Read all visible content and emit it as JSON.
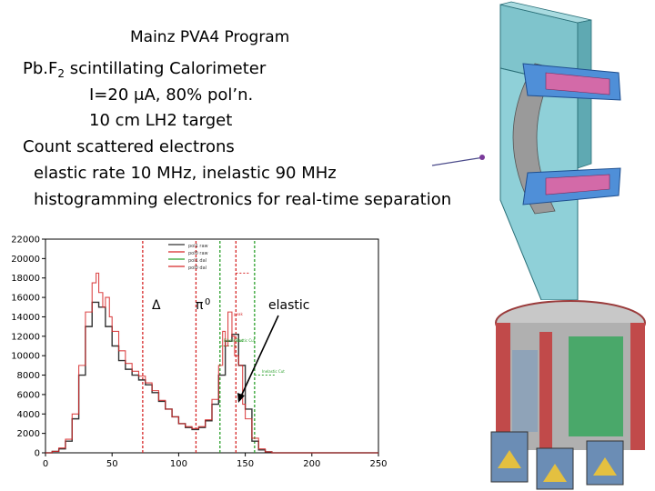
{
  "slide": {
    "title": "Mainz PVA4 Program",
    "line1_main": "Pb.F",
    "line1_sub": "2",
    "line1_rest": " scintillating Calorimeter",
    "line2": "I=20 μA, 80% pol’n.",
    "line3": "10 cm LH2 target",
    "line4": "Count scattered electrons",
    "line5": "elastic rate 10 MHz, inelastic 90 MHz",
    "line6": "histogramming electronics for real-time separation"
  },
  "chart_data": {
    "type": "line",
    "xlim": [
      0,
      250
    ],
    "ylim": [
      0,
      22000
    ],
    "x_ticks": [
      "0",
      "50",
      "100",
      "150",
      "200",
      "250"
    ],
    "y_ticks": [
      "0",
      "2000",
      "4000",
      "6000",
      "8000",
      "10000",
      "12000",
      "14000",
      "16000",
      "18000",
      "20000",
      "22000"
    ],
    "legend": [
      "pol1 raw",
      "pol0 raw",
      "pol1 dal",
      "pol0 dal"
    ],
    "legend_colors": [
      "#333333",
      "#d62728",
      "#2ca02c",
      "#d62728"
    ],
    "annotations": {
      "delta": "Δ",
      "pi0": "π",
      "pi0_sup": "0",
      "elastic": "elastic",
      "cut1": "Elastic Cut",
      "cut2": "Elastic Cut",
      "cut3": "Inelastic Cut",
      "peak": "peak"
    },
    "series": [
      {
        "color": "#333333",
        "x": [
          0,
          5,
          10,
          15,
          20,
          25,
          30,
          35,
          40,
          45,
          50,
          55,
          60,
          65,
          70,
          75,
          80,
          85,
          90,
          95,
          100,
          105,
          110,
          115,
          120,
          125,
          130,
          135,
          140,
          145,
          150,
          155,
          160,
          165,
          170,
          180,
          200,
          250
        ],
        "y": [
          0,
          150,
          400,
          1200,
          3500,
          8000,
          13000,
          15500,
          15000,
          13000,
          11000,
          9500,
          8600,
          8000,
          7500,
          7000,
          6200,
          5300,
          4500,
          3700,
          3000,
          2600,
          2400,
          2600,
          3300,
          5000,
          8000,
          11500,
          12200,
          9000,
          4500,
          1200,
          300,
          100,
          0,
          0,
          0,
          0
        ]
      },
      {
        "color": "#d62728",
        "x": [
          0,
          5,
          10,
          15,
          20,
          25,
          30,
          35,
          38,
          40,
          43,
          45,
          48,
          50,
          55,
          60,
          65,
          70,
          75,
          80,
          85,
          90,
          95,
          100,
          105,
          110,
          115,
          120,
          125,
          130,
          133,
          135,
          137,
          140,
          142,
          145,
          148,
          150,
          155,
          160,
          165,
          170,
          180,
          250
        ],
        "y": [
          0,
          150,
          500,
          1400,
          4000,
          9000,
          14500,
          17500,
          18500,
          16500,
          15000,
          16000,
          14000,
          12500,
          10500,
          9200,
          8400,
          7900,
          7200,
          6400,
          5400,
          4500,
          3700,
          3000,
          2700,
          2500,
          2700,
          3400,
          5500,
          9000,
          12500,
          11000,
          14500,
          12000,
          10000,
          9000,
          5000,
          3500,
          1500,
          400,
          100,
          0,
          0,
          0
        ]
      }
    ],
    "markers": [
      {
        "x": 73,
        "color": "#d62728"
      },
      {
        "x": 113,
        "color": "#d62728"
      },
      {
        "x": 131,
        "color": "#2ca02c"
      },
      {
        "x": 143,
        "color": "#d62728"
      },
      {
        "x": 157,
        "color": "#2ca02c"
      }
    ]
  }
}
